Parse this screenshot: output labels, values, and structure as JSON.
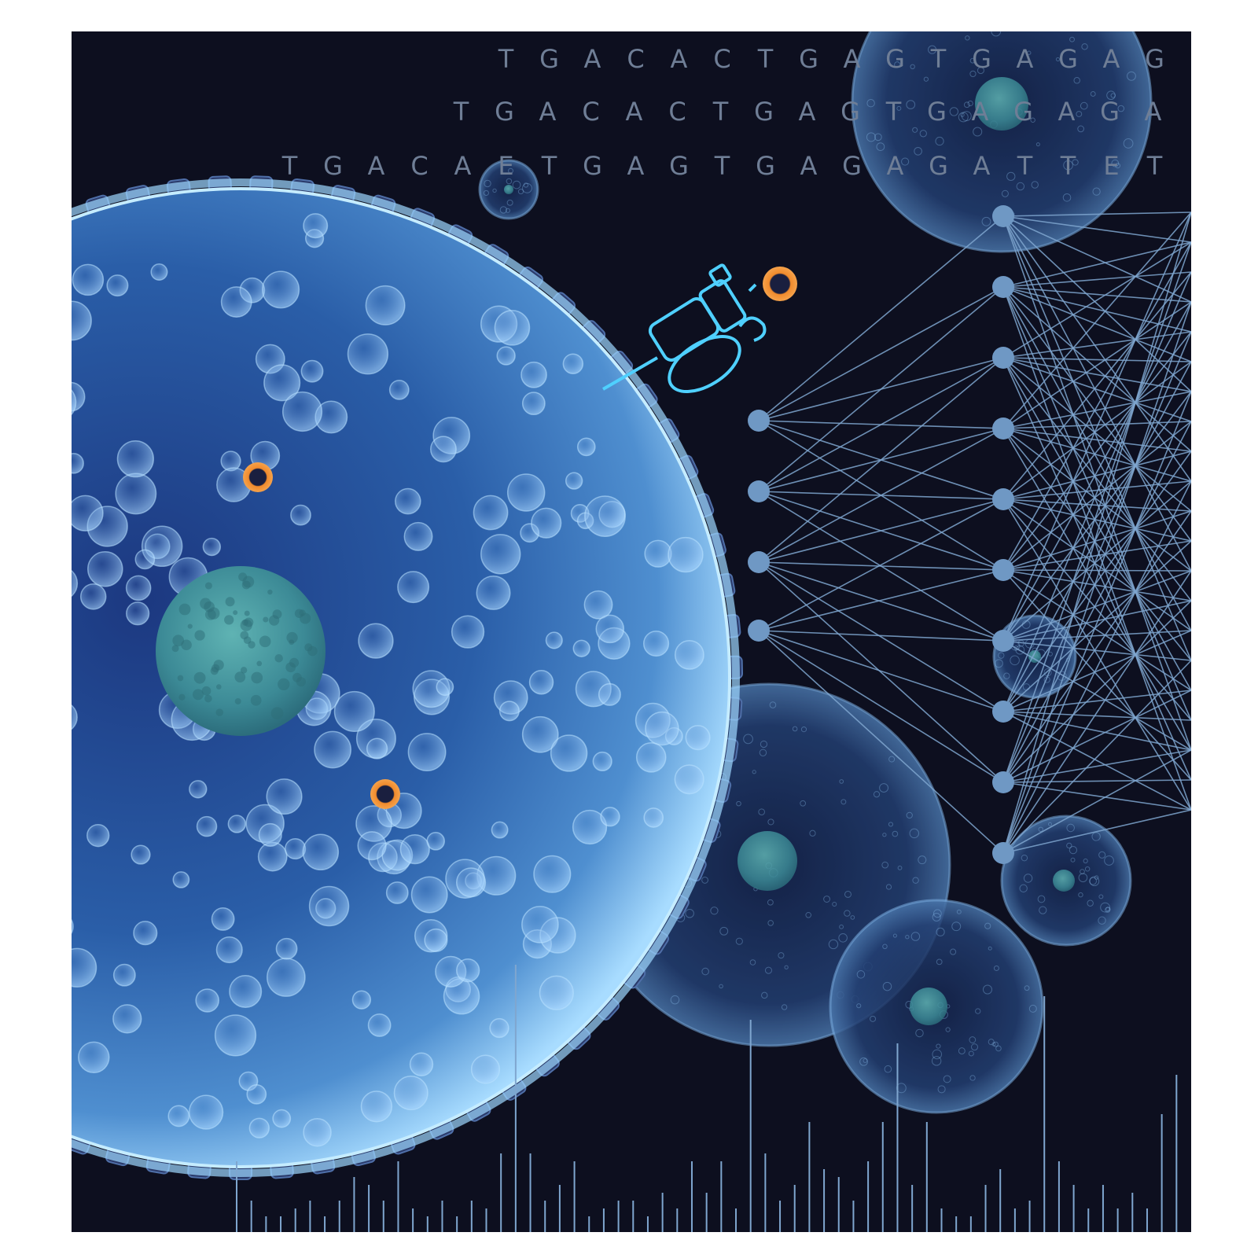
{
  "dna_sequences": [
    "TGACACTGAGTGAGAG",
    "TGACACTGAGTGAGAGA",
    "TGACAETGAGTGAGAGATTET"
  ],
  "colors": {
    "background": "#0d0f1f",
    "cell_blue": "#4f86c9",
    "cell_rim": "#8fd0ff",
    "nucleus": "#3c8a96",
    "marker_orange": "#f08a2c",
    "network_line": "#7fa6cf",
    "sequence_text": "#6f7e96"
  },
  "network": {
    "input_nodes": 4,
    "hidden_nodes": 10
  },
  "spectrum_bar_heights": [
    0.09,
    0.04,
    0.02,
    0.02,
    0.03,
    0.04,
    0.02,
    0.04,
    0.07,
    0.06,
    0.04,
    0.09,
    0.03,
    0.02,
    0.04,
    0.02,
    0.04,
    0.03,
    0.1,
    0.34,
    0.1,
    0.04,
    0.06,
    0.09,
    0.02,
    0.03,
    0.04,
    0.04,
    0.02,
    0.05,
    0.03,
    0.09,
    0.05,
    0.09,
    0.03,
    0.27,
    0.1,
    0.04,
    0.06,
    0.14,
    0.08,
    0.07,
    0.04,
    0.09,
    0.14,
    0.24,
    0.06,
    0.14,
    0.03,
    0.02,
    0.02,
    0.06,
    0.08,
    0.03,
    0.04,
    0.3,
    0.09,
    0.06,
    0.03,
    0.06,
    0.03,
    0.05,
    0.03,
    0.15,
    0.2
  ]
}
